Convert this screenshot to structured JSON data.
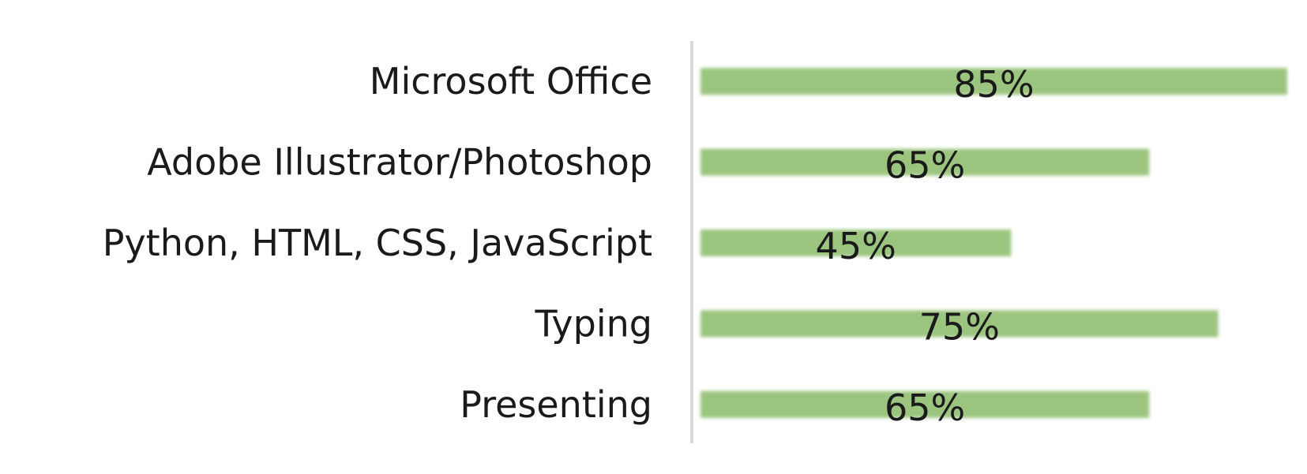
{
  "chart_data": {
    "type": "bar",
    "orientation": "horizontal",
    "categories": [
      "Microsoft Office",
      "Adobe Illustrator/Photoshop",
      "Python, HTML, CSS, JavaScript",
      "Typing",
      "Presenting"
    ],
    "values": [
      85,
      65,
      45,
      75,
      65
    ],
    "value_labels": [
      "85%",
      "65%",
      "45%",
      "75%",
      "65%"
    ],
    "value_unit": "%",
    "xlim": [
      0,
      85
    ],
    "grid": false,
    "legend": "none",
    "bar_color": "#9bc57f",
    "axis_color": "#d9d9d9",
    "text_color": "#1a1a1a"
  }
}
